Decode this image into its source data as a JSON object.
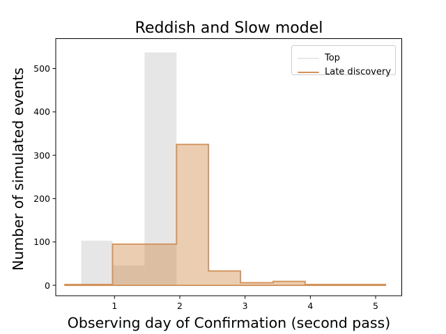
{
  "title": "Reddish and Slow model",
  "axes": {
    "xlabel": "Observing day of Confirmation (second pass)",
    "ylabel": "Number of simulated events"
  },
  "legend": {
    "items": [
      {
        "label": "Top",
        "color": "#e8e8e8"
      },
      {
        "label": "Late discovery",
        "color": "#d2925a"
      }
    ]
  },
  "colors": {
    "top_fill": "#e6e6e6",
    "late_line": "#d2925a",
    "late_fill": "rgba(205,133,63,0.4)",
    "spine": "#000000"
  },
  "chart_data": {
    "type": "bar",
    "subtype": "overlaid-histograms",
    "title": "Reddish and Slow model",
    "xlabel": "Observing day of Confirmation (second pass)",
    "ylabel": "Number of simulated events",
    "xlim": [
      0.1,
      5.4
    ],
    "ylim": [
      -24,
      569
    ],
    "xticks": [
      1,
      2,
      3,
      4,
      5
    ],
    "yticks": [
      0,
      100,
      200,
      300,
      400,
      500
    ],
    "grid": false,
    "legend_position": "upper right",
    "series": [
      {
        "name": "Top",
        "style": "filled-bars",
        "color": "#e6e6e6",
        "bin_edges": [
          0.49,
          0.97,
          1.46,
          1.95
        ],
        "counts": [
          103,
          46,
          537
        ]
      },
      {
        "name": "Late discovery",
        "style": "step-filled-outline",
        "line_color": "#d2925a",
        "fill_color": "rgba(205,133,63,0.4)",
        "bin_edges": [
          0.24,
          0.97,
          1.46,
          1.95,
          2.44,
          2.93,
          3.43,
          3.92,
          5.15
        ],
        "counts": [
          2,
          95,
          95,
          325,
          33,
          6,
          9,
          2
        ]
      }
    ]
  }
}
